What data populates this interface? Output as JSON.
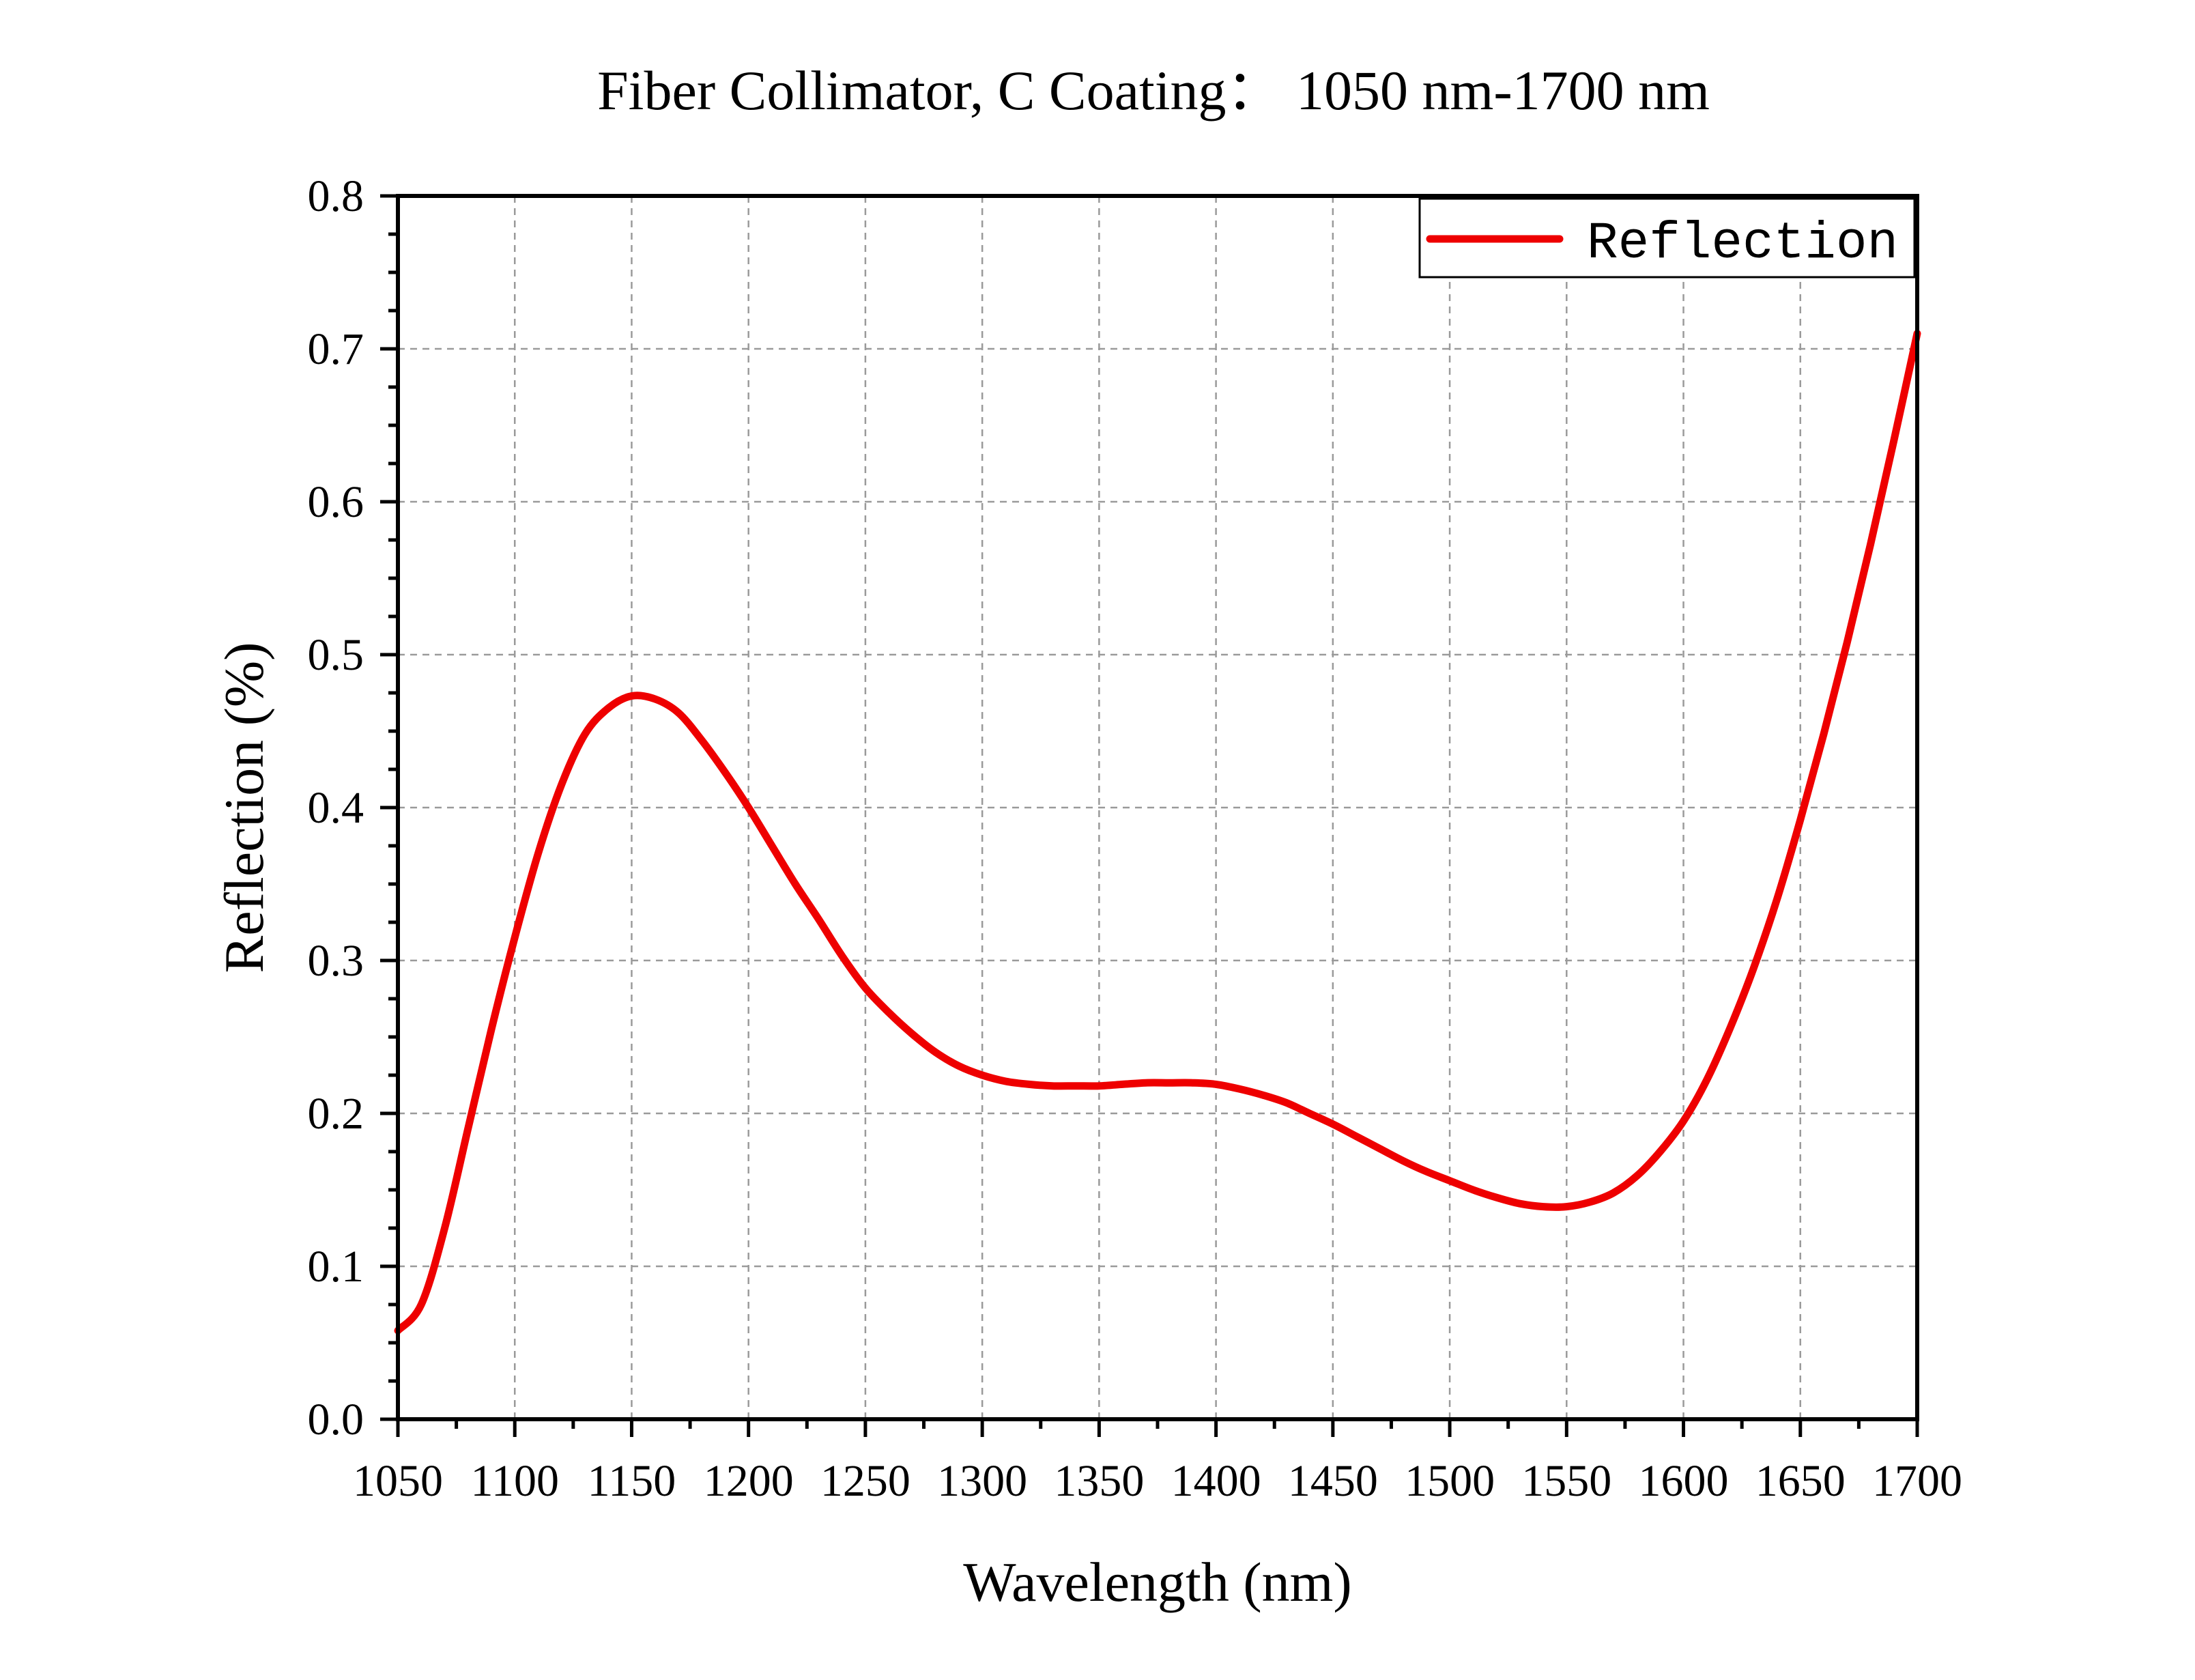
{
  "chart_data": {
    "type": "line",
    "title": "Fiber Collimator, C Coating：  1050 nm-1700 nm",
    "xlabel": "Wavelength (nm)",
    "ylabel": "Reflection (%)",
    "xlim": [
      1050,
      1700
    ],
    "ylim": [
      0.0,
      0.8
    ],
    "x_ticks": [
      1050,
      1100,
      1150,
      1200,
      1250,
      1300,
      1350,
      1400,
      1450,
      1500,
      1550,
      1600,
      1650,
      1700
    ],
    "x_tick_labels": [
      "1050",
      "1100",
      "1150",
      "1200",
      "1250",
      "1300",
      "1350",
      "1400",
      "1450",
      "1500",
      "1550",
      "1600",
      "1650",
      "1700"
    ],
    "y_ticks": [
      0.0,
      0.1,
      0.2,
      0.3,
      0.4,
      0.5,
      0.6,
      0.7,
      0.8
    ],
    "y_tick_labels": [
      "0.0",
      "0.1",
      "0.2",
      "0.3",
      "0.4",
      "0.5",
      "0.6",
      "0.7",
      "0.8"
    ],
    "grid": true,
    "legend_position": "top-right",
    "series": [
      {
        "name": "Reflection",
        "color": "#ee0000",
        "x": [
          1050,
          1060,
          1070,
          1080,
          1090,
          1100,
          1110,
          1120,
          1130,
          1140,
          1150,
          1160,
          1170,
          1180,
          1190,
          1200,
          1210,
          1220,
          1230,
          1240,
          1250,
          1260,
          1270,
          1280,
          1290,
          1300,
          1310,
          1320,
          1330,
          1340,
          1350,
          1360,
          1370,
          1380,
          1390,
          1400,
          1410,
          1420,
          1430,
          1440,
          1450,
          1460,
          1470,
          1480,
          1490,
          1500,
          1510,
          1520,
          1530,
          1540,
          1550,
          1560,
          1570,
          1580,
          1590,
          1600,
          1610,
          1620,
          1630,
          1640,
          1650,
          1660,
          1670,
          1680,
          1690,
          1700
        ],
        "y": [
          0.058,
          0.075,
          0.125,
          0.19,
          0.255,
          0.315,
          0.37,
          0.415,
          0.448,
          0.465,
          0.473,
          0.471,
          0.462,
          0.444,
          0.423,
          0.4,
          0.375,
          0.35,
          0.327,
          0.303,
          0.282,
          0.266,
          0.252,
          0.24,
          0.231,
          0.225,
          0.221,
          0.219,
          0.218,
          0.218,
          0.218,
          0.219,
          0.22,
          0.22,
          0.22,
          0.219,
          0.216,
          0.212,
          0.207,
          0.2,
          0.193,
          0.185,
          0.177,
          0.169,
          0.162,
          0.156,
          0.15,
          0.145,
          0.141,
          0.139,
          0.139,
          0.142,
          0.148,
          0.159,
          0.175,
          0.195,
          0.222,
          0.256,
          0.295,
          0.34,
          0.392,
          0.448,
          0.508,
          0.572,
          0.64,
          0.71
        ]
      }
    ]
  }
}
